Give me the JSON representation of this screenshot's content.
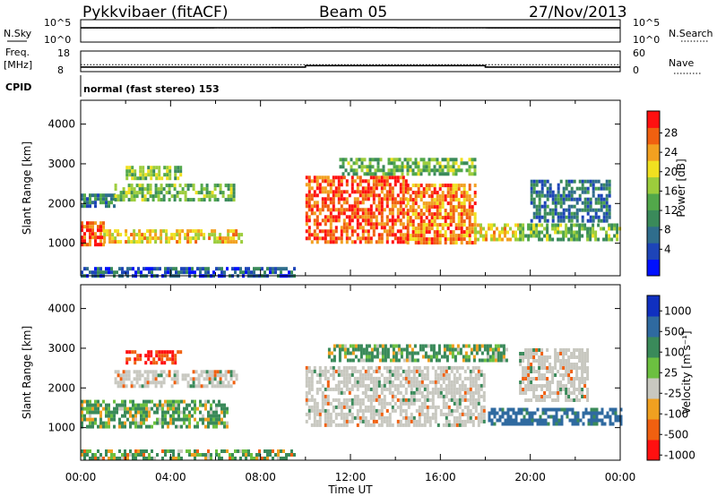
{
  "header": {
    "station": "Pykkvibaer (fitACF)",
    "beam": "Beam 05",
    "date": "27/Nov/2013"
  },
  "noise_panel": {
    "left_label": "N.Sky",
    "left_ticks": [
      "10^5",
      "10^0"
    ],
    "right_label": "N.Search",
    "right_ticks": [
      "10^5",
      "10^0"
    ]
  },
  "freq_panel": {
    "left_label_1": "Freq.",
    "left_label_2": "[MHz]",
    "left_ticks": [
      "18",
      "8"
    ],
    "right_label": "Nave",
    "right_ticks": [
      "60",
      "0"
    ]
  },
  "cpid": {
    "label": "CPID",
    "text": "normal (fast stereo) 153"
  },
  "chart_data": [
    {
      "type": "line",
      "panel": "noise",
      "title": "",
      "series": [
        {
          "name": "N.Sky",
          "style": "solid",
          "x": [
            "00:00",
            "04:00",
            "08:00",
            "12:00",
            "16:00",
            "20:00",
            "24:00"
          ],
          "values": [
            1500,
            1500,
            1600,
            1800,
            1600,
            1500,
            1500
          ]
        },
        {
          "name": "N.Search",
          "style": "dotted",
          "x": [
            "00:00",
            "24:00"
          ],
          "values": [
            1500,
            1500
          ]
        }
      ],
      "y_scale": "log",
      "ylim": [
        1,
        100000
      ]
    },
    {
      "type": "line",
      "panel": "freq_nave",
      "title": "",
      "series": [
        {
          "name": "Freq.",
          "style": "solid",
          "x": [
            "00:00",
            "10:00",
            "10:00",
            "18:00",
            "18:00",
            "24:00"
          ],
          "values": [
            10.2,
            10.2,
            10.9,
            10.9,
            10.2,
            10.2
          ]
        },
        {
          "name": "Nave",
          "style": "dotted",
          "x": [
            "00:00",
            "24:00"
          ],
          "values": [
            20,
            20
          ]
        }
      ],
      "ylim_freq": [
        8,
        18
      ],
      "ylim_nave": [
        0,
        60
      ]
    },
    {
      "type": "heatmap",
      "panel": "power",
      "title": "",
      "xlabel": "",
      "ylabel": "Slant Range [km]",
      "x_ticks": [
        "00:00",
        "04:00",
        "08:00",
        "12:00",
        "16:00",
        "20:00",
        "00:00"
      ],
      "xlim_hours": [
        0,
        24
      ],
      "y_ticks": [
        "1000",
        "2000",
        "3000",
        "4000"
      ],
      "ylim": [
        180,
        4600
      ],
      "colorbar": {
        "label": "Power [dB]",
        "ticks": [
          "4",
          "8",
          "12",
          "16",
          "20",
          "24",
          "28"
        ],
        "range": [
          0,
          30
        ],
        "colors": [
          "#0010ff",
          "#1d44b8",
          "#2f6d8c",
          "#3a8a5a",
          "#52a84a",
          "#9ccd3c",
          "#f0e020",
          "#f2a020",
          "#f06010",
          "#ff1010"
        ]
      },
      "echo_regions": [
        {
          "t0": 0.0,
          "t1": 1.0,
          "r0": 1000,
          "r1": 1550,
          "value": 26
        },
        {
          "t0": 1.0,
          "t1": 7.2,
          "r0": 1050,
          "r1": 1350,
          "value": 20
        },
        {
          "t0": 0.0,
          "t1": 1.5,
          "r0": 1900,
          "r1": 2250,
          "value": 10
        },
        {
          "t0": 1.5,
          "t1": 6.8,
          "r0": 2050,
          "r1": 2500,
          "value": 14
        },
        {
          "t0": 2.0,
          "t1": 4.5,
          "r0": 2600,
          "r1": 2950,
          "value": 16
        },
        {
          "t0": 10.0,
          "t1": 14.5,
          "r0": 1000,
          "r1": 2700,
          "value": 26
        },
        {
          "t0": 14.5,
          "t1": 17.5,
          "r0": 1000,
          "r1": 2500,
          "value": 24
        },
        {
          "t0": 11.5,
          "t1": 17.5,
          "r0": 2700,
          "r1": 3150,
          "value": 14
        },
        {
          "t0": 17.5,
          "t1": 19.5,
          "r0": 1100,
          "r1": 1500,
          "value": 20
        },
        {
          "t0": 19.5,
          "t1": 24.0,
          "r0": 1100,
          "r1": 1500,
          "value": 14
        },
        {
          "t0": 20.0,
          "t1": 23.5,
          "r0": 1600,
          "r1": 2600,
          "value": 8
        },
        {
          "t0": 0.0,
          "t1": 9.5,
          "r0": 180,
          "r1": 400,
          "value": 6
        }
      ]
    },
    {
      "type": "heatmap",
      "panel": "velocity",
      "title": "",
      "xlabel": "Time UT",
      "ylabel": "Slant Range [km]",
      "x_ticks": [
        "00:00",
        "04:00",
        "08:00",
        "12:00",
        "16:00",
        "20:00",
        "00:00"
      ],
      "xlim_hours": [
        0,
        24
      ],
      "y_ticks": [
        "1000",
        "2000",
        "3000",
        "4000"
      ],
      "ylim": [
        180,
        4600
      ],
      "colorbar": {
        "label": "Velocity [m s⁻¹]",
        "ticks": [
          "1000",
          "500",
          "100",
          "25",
          "-25",
          "-100",
          "-500",
          "-1000"
        ],
        "colors": [
          "#1030c0",
          "#2f6aa0",
          "#3a8a5a",
          "#6cc040",
          "#c8c8c0",
          "#f0a020",
          "#f06010",
          "#ff1010"
        ]
      },
      "echo_regions": [
        {
          "t0": 0.0,
          "t1": 6.5,
          "r0": 1000,
          "r1": 1700,
          "value": 100
        },
        {
          "t0": 1.5,
          "t1": 7.0,
          "r0": 2000,
          "r1": 2450,
          "value": 0
        },
        {
          "t0": 2.0,
          "t1": 4.5,
          "r0": 2650,
          "r1": 2950,
          "value": -300
        },
        {
          "t0": 10.0,
          "t1": 18.0,
          "r0": 1100,
          "r1": 2550,
          "value": 0
        },
        {
          "t0": 11.0,
          "t1": 19.0,
          "r0": 2700,
          "r1": 3100,
          "value": 100
        },
        {
          "t0": 18.0,
          "t1": 24.0,
          "r0": 1100,
          "r1": 1500,
          "value": 400
        },
        {
          "t0": 19.5,
          "t1": 22.5,
          "r0": 1700,
          "r1": 3000,
          "value": 0
        },
        {
          "t0": 0.0,
          "t1": 9.5,
          "r0": 180,
          "r1": 450,
          "value": 60
        }
      ]
    }
  ]
}
